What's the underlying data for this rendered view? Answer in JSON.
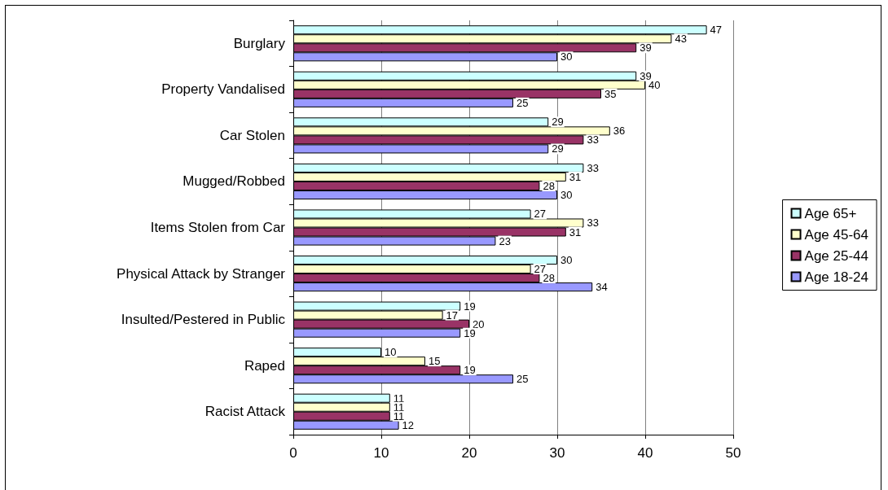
{
  "chart_data": {
    "type": "bar",
    "orientation": "horizontal",
    "categories": [
      "Burglary",
      "Property Vandalised",
      "Car Stolen",
      "Mugged/Robbed",
      "Items Stolen from Car",
      "Physical Attack by Stranger",
      "Insulted/Pestered in Public",
      "Raped",
      "Racist Attack"
    ],
    "series": [
      {
        "name": "Age 65+",
        "color": "#ccffff",
        "values": [
          47,
          39,
          29,
          33,
          27,
          30,
          19,
          10,
          11
        ]
      },
      {
        "name": "Age 45-64",
        "color": "#ffffcc",
        "values": [
          43,
          40,
          36,
          31,
          33,
          27,
          17,
          15,
          11
        ]
      },
      {
        "name": "Age 25-44",
        "color": "#993366",
        "values": [
          39,
          35,
          33,
          28,
          31,
          28,
          20,
          19,
          11
        ]
      },
      {
        "name": "Age 18-24",
        "color": "#9999ff",
        "values": [
          30,
          25,
          29,
          30,
          23,
          34,
          19,
          25,
          12
        ]
      }
    ],
    "xlim": [
      0,
      50
    ],
    "xticks": [
      0,
      10,
      20,
      30,
      40,
      50
    ],
    "grid": "x",
    "legend": "right",
    "data_labels": true
  }
}
